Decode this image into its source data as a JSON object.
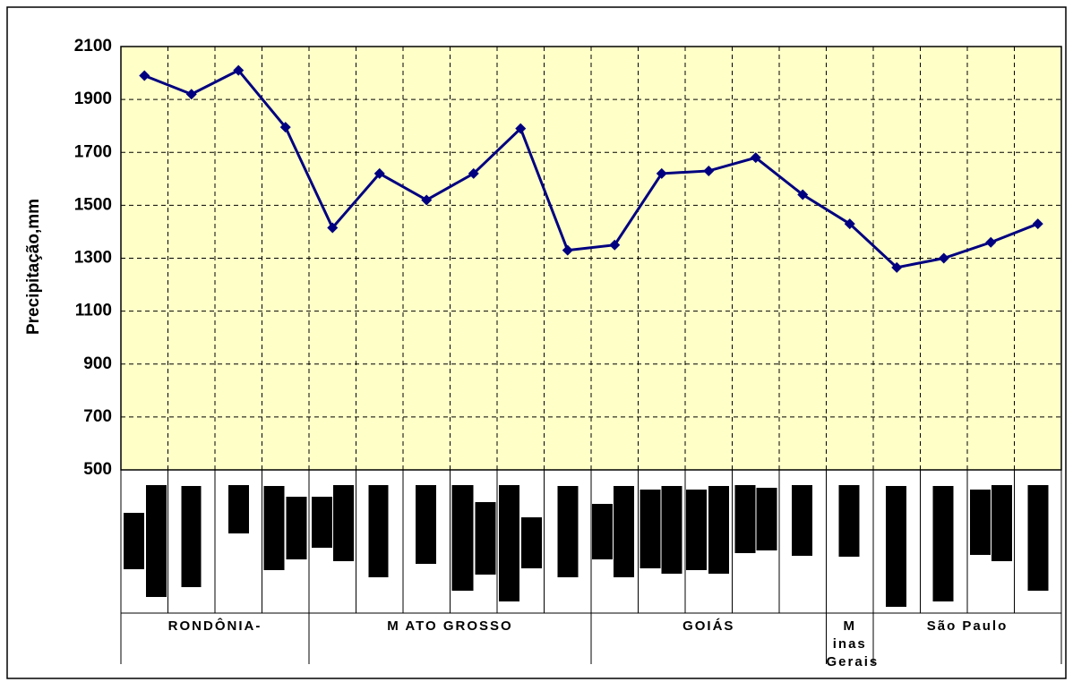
{
  "chart_data": {
    "type": "line",
    "y_label": "Precipitação,mm",
    "groups": [
      {
        "label": "RONDÔNIA-",
        "categories": [
          null,
          null,
          null,
          null
        ]
      },
      {
        "label": "M ATO GROSSO",
        "categories": [
          null,
          null,
          null,
          null,
          null,
          null
        ]
      },
      {
        "label": "GOIÁS",
        "categories": [
          null,
          null,
          null,
          null,
          null
        ]
      },
      {
        "label": "M inas Gerais",
        "categories": [
          null
        ]
      },
      {
        "label": "São Paulo",
        "categories": [
          null,
          null,
          null,
          null
        ]
      }
    ],
    "series": [
      {
        "name": null,
        "color": "#000080",
        "values": [
          1990,
          1920,
          2010,
          1795,
          1415,
          1620,
          1520,
          1620,
          1790,
          1330,
          1350,
          1620,
          1630,
          1680,
          1540,
          1430,
          1265,
          1300,
          1360,
          1430
        ]
      }
    ],
    "ylim": [
      500,
      2100
    ],
    "yticks": [
      500,
      700,
      900,
      1100,
      1300,
      1500,
      1700,
      1900,
      2100
    ],
    "grid": true,
    "plot_background": "#ffffc8"
  }
}
